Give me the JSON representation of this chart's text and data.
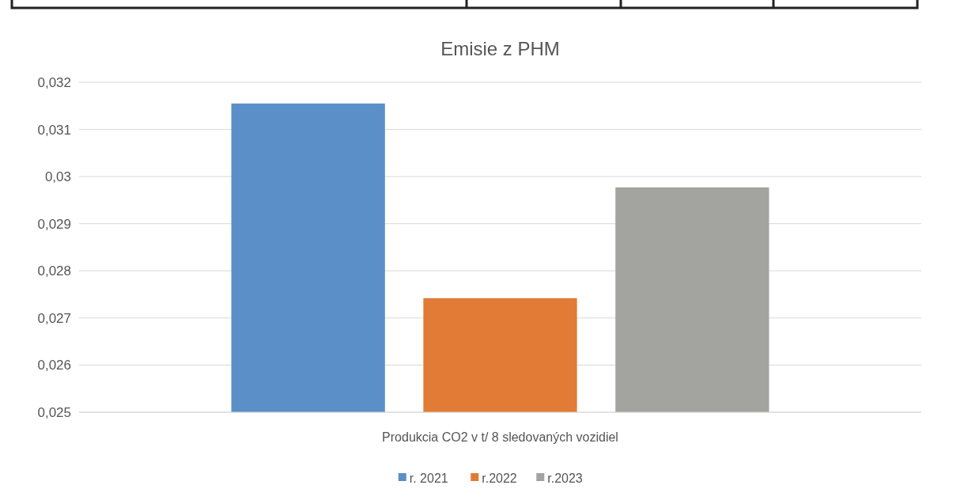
{
  "chart_data": {
    "type": "bar",
    "title": "Emisie z PHM",
    "categories": [
      "Produkcia CO2 v t/ 8 sledovaných vozidiel"
    ],
    "series": [
      {
        "name": "r. 2021",
        "color": "#5b8fc7",
        "values": [
          0.03155
        ]
      },
      {
        "name": "r.2022",
        "color": "#e27b36",
        "values": [
          0.02742
        ]
      },
      {
        "name": "r.2023",
        "color": "#a3a39f",
        "values": [
          0.02977
        ]
      }
    ],
    "ylim": [
      0.025,
      0.032
    ],
    "yticks": [
      {
        "value": 0.025,
        "label": "0,025"
      },
      {
        "value": 0.026,
        "label": "0,026"
      },
      {
        "value": 0.027,
        "label": "0,027"
      },
      {
        "value": 0.028,
        "label": "0,028"
      },
      {
        "value": 0.029,
        "label": "0,029"
      },
      {
        "value": 0.03,
        "label": "0,03"
      },
      {
        "value": 0.031,
        "label": "0,031"
      },
      {
        "value": 0.032,
        "label": "0,032"
      }
    ],
    "grid": "y",
    "legend": "bottom"
  }
}
